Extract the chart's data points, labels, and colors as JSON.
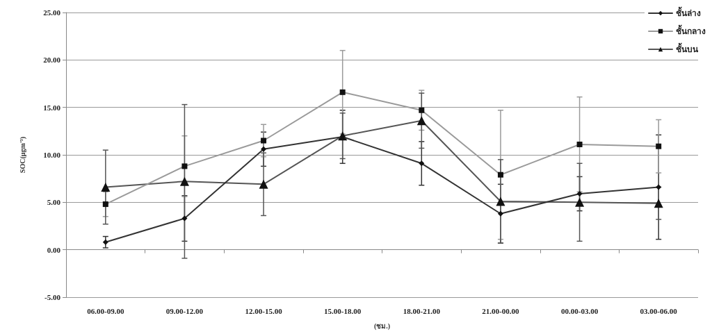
{
  "chart_data": {
    "type": "line",
    "xlabel": "(ชม.)",
    "ylabel": "SOC(µgm⁻³)",
    "categories": [
      "06.00-09.00",
      "09.00-12.00",
      "12.00-15.00",
      "15.00-18.00",
      "18.00-21.00",
      "21.00-00.00",
      "00.00-03.00",
      "03.00-06.00"
    ],
    "series": [
      {
        "name": "ชั้นล่าง",
        "color": "#333333",
        "marker": "diamond",
        "values": [
          0.8,
          3.3,
          10.6,
          11.9,
          9.1,
          3.8,
          5.9,
          6.6
        ],
        "errors": [
          0.6,
          2.4,
          1.8,
          2.8,
          2.3,
          3.1,
          1.8,
          5.5
        ]
      },
      {
        "name": "ชั้นกลาง",
        "color": "#9a9a9a",
        "marker": "square",
        "values": [
          4.8,
          8.8,
          11.5,
          16.6,
          14.7,
          7.9,
          11.1,
          10.9
        ],
        "errors": [
          1.3,
          3.2,
          1.7,
          4.4,
          2.1,
          6.8,
          5.0,
          2.8
        ]
      },
      {
        "name": "ชั้นบน",
        "color": "#555555",
        "marker": "triangle",
        "values": [
          6.6,
          7.2,
          6.9,
          12.0,
          13.6,
          5.1,
          5.0,
          4.9
        ],
        "errors": [
          3.9,
          8.1,
          3.3,
          2.4,
          2.9,
          4.4,
          4.1,
          1.7
        ]
      }
    ],
    "ylim": [
      -5,
      25
    ],
    "yticks": [
      {
        "value": -5,
        "label": "-5.00"
      },
      {
        "value": 0,
        "label": "0.00"
      },
      {
        "value": 5,
        "label": "5.00"
      },
      {
        "value": 10,
        "label": "10.00"
      },
      {
        "value": 15,
        "label": "15.00"
      },
      {
        "value": 20,
        "label": "20.00"
      },
      {
        "value": 25,
        "label": "25.00"
      }
    ],
    "grid": "y",
    "legend": "top right",
    "line_style": "solid"
  }
}
